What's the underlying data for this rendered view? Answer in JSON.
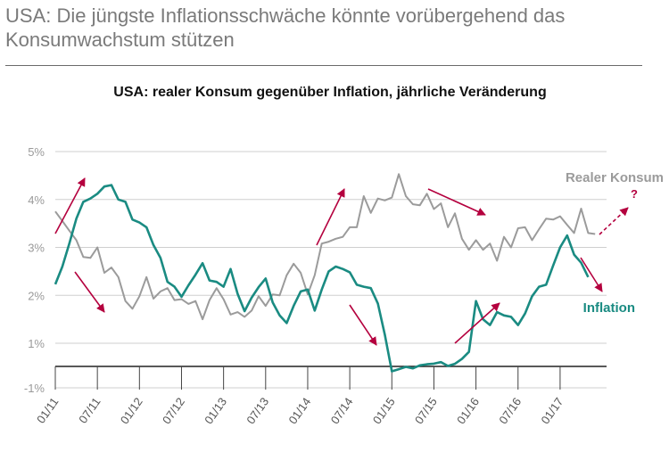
{
  "heading": {
    "line1": "USA: Die jüngste Inflationsschwäche könnte vorübergehend das",
    "line2": "Konsumwachstum stützen"
  },
  "chart_data": {
    "type": "line",
    "title": "USA: realer Konsum gegenüber Inflation, jährliche Veränderung",
    "xlabel": "",
    "ylabel": "",
    "ylim": [
      -1,
      5
    ],
    "y_ticks": [
      "-1%",
      "1%",
      "2%",
      "3%",
      "4%",
      "5%"
    ],
    "x_ticks": [
      "01/11",
      "07/11",
      "01/12",
      "07/12",
      "01/13",
      "07/13",
      "01/14",
      "07/14",
      "01/15",
      "07/15",
      "01/16",
      "07/16",
      "01/17"
    ],
    "grid": "horizontal",
    "zero_line": true,
    "x_start": "2011-01",
    "series": [
      {
        "name": "Realer Konsum",
        "color": "#9b9b9b",
        "values": [
          3.75,
          3.55,
          3.35,
          3.15,
          2.8,
          2.78,
          3.0,
          2.47,
          2.58,
          2.38,
          1.88,
          1.72,
          1.98,
          2.38,
          1.93,
          2.08,
          2.15,
          1.9,
          1.92,
          1.82,
          1.88,
          1.5,
          1.9,
          2.15,
          1.92,
          1.6,
          1.65,
          1.55,
          1.68,
          1.98,
          1.78,
          2.02,
          2.0,
          2.42,
          2.66,
          2.47,
          2.02,
          2.42,
          3.08,
          3.12,
          3.18,
          3.22,
          3.42,
          3.42,
          4.07,
          3.72,
          4.02,
          3.98,
          4.04,
          4.53,
          4.07,
          3.9,
          3.88,
          4.12,
          3.8,
          3.92,
          3.42,
          3.71,
          3.18,
          2.95,
          3.15,
          2.95,
          3.08,
          2.72,
          3.22,
          3.0,
          3.4,
          3.42,
          3.15,
          3.38,
          3.6,
          3.58,
          3.65,
          3.47,
          3.3,
          3.81,
          3.3,
          3.28
        ]
      },
      {
        "name": "Inflation",
        "color": "#1a8b82",
        "values": [
          2.23,
          2.6,
          3.08,
          3.6,
          3.95,
          4.02,
          4.12,
          4.27,
          4.3,
          4.0,
          3.95,
          3.58,
          3.52,
          3.42,
          3.05,
          2.78,
          2.28,
          2.18,
          1.97,
          2.21,
          2.43,
          2.67,
          2.31,
          2.28,
          2.18,
          2.55,
          2.03,
          1.67,
          1.95,
          2.17,
          2.35,
          1.85,
          1.58,
          1.42,
          1.78,
          2.08,
          2.12,
          1.68,
          2.12,
          2.5,
          2.6,
          2.55,
          2.48,
          2.22,
          2.18,
          2.15,
          1.83,
          1.18,
          -0.23,
          -0.13,
          -0.02,
          -0.09,
          0.05,
          0.1,
          0.13,
          0.2,
          0.02,
          0.12,
          0.35,
          0.68,
          1.88,
          1.5,
          1.38,
          1.65,
          1.58,
          1.55,
          1.38,
          1.62,
          1.98,
          2.18,
          2.22,
          2.62,
          3.0,
          3.25,
          2.85,
          2.68,
          2.38
        ]
      }
    ],
    "annotations": [
      "?"
    ]
  }
}
